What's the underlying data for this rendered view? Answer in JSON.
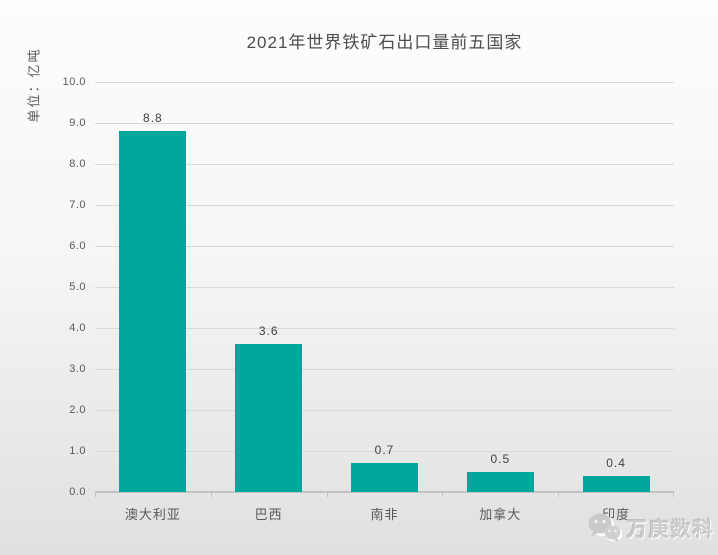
{
  "page": {
    "background_top": "#fdfdfd",
    "background_bottom": "#e0e0e0"
  },
  "chart_data": {
    "type": "bar",
    "title": "2021年世界铁矿石出口量前五国家",
    "ylabel": "单位：亿吨",
    "xlabel": "",
    "categories": [
      "澳大利亚",
      "巴西",
      "南非",
      "加拿大",
      "印度"
    ],
    "values": [
      8.8,
      3.6,
      0.7,
      0.5,
      0.4
    ],
    "data_labels": [
      "8.8",
      "3.6",
      "0.7",
      "0.5",
      "0.4"
    ],
    "ylim": [
      0,
      10
    ],
    "ytick_step": 1,
    "ytick_labels": [
      "0.0",
      "1.0",
      "2.0",
      "3.0",
      "4.0",
      "5.0",
      "6.0",
      "7.0",
      "8.0",
      "9.0",
      "10.0"
    ],
    "grid": true,
    "legend": false,
    "bar_color": "#00A79C",
    "gridline_color": "#d9d9d9",
    "axis_color": "#c2c2c2",
    "text_color": "#595959"
  },
  "watermark": {
    "icon": "wechat-logo",
    "text": "万庚数科"
  }
}
